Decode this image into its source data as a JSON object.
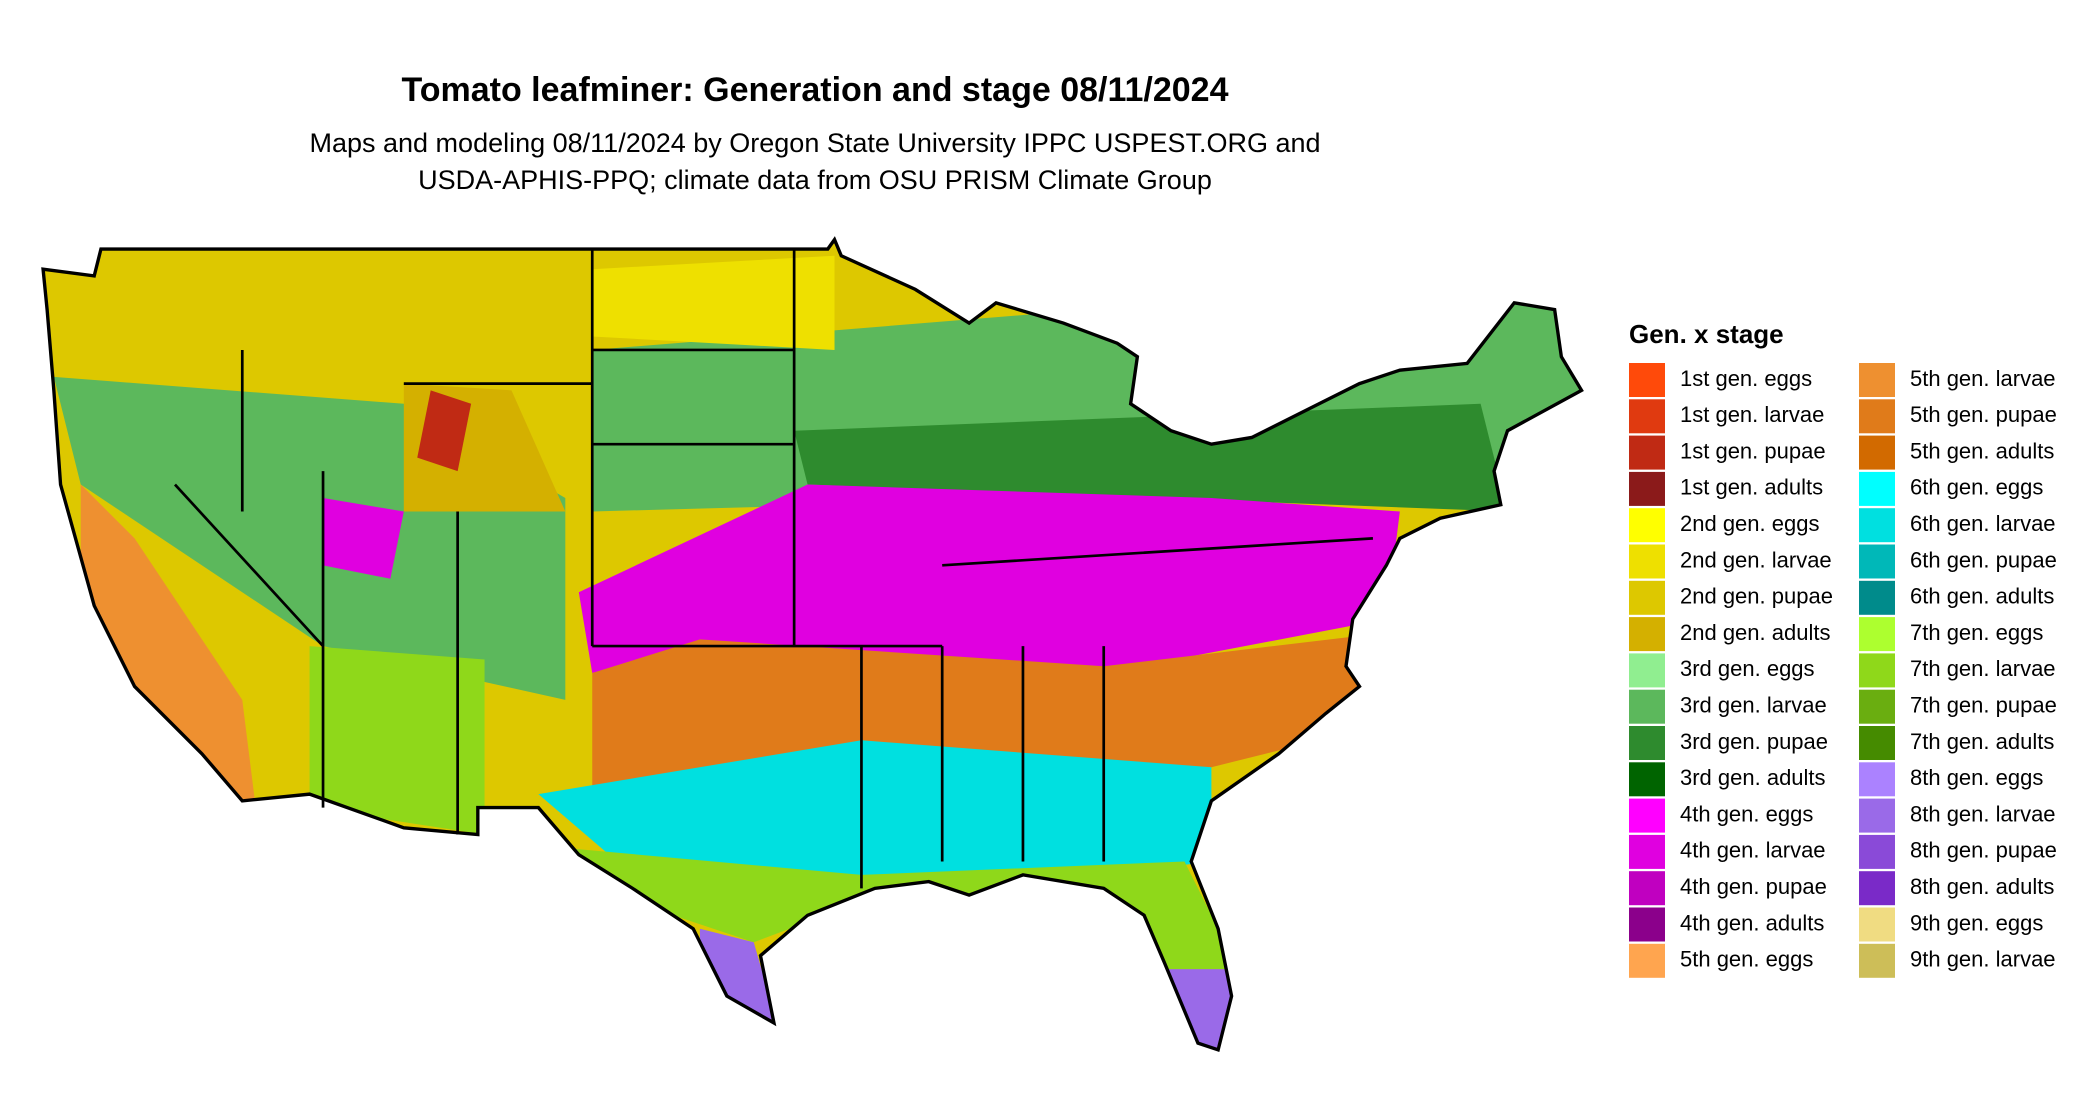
{
  "title": "Tomato leafminer: Generation and stage 08/11/2024",
  "subtitle": [
    "Maps and modeling 08/11/2024 by Oregon State University IPPC USPEST.ORG and",
    "USDA-APHIS-PPQ; climate data from OSU PRISM Climate Group"
  ],
  "legend": {
    "title": "Gen. x stage",
    "items": [
      {
        "label": "1st gen. eggs",
        "color": "#ff4a0a"
      },
      {
        "label": "1st gen. larvae",
        "color": "#e03a10"
      },
      {
        "label": "1st gen. pupae",
        "color": "#c02a14"
      },
      {
        "label": "1st gen. adults",
        "color": "#8b1a1a"
      },
      {
        "label": "2nd gen. eggs",
        "color": "#ffff00"
      },
      {
        "label": "2nd gen. larvae",
        "color": "#eee000"
      },
      {
        "label": "2nd gen. pupae",
        "color": "#ddc800"
      },
      {
        "label": "2nd gen. adults",
        "color": "#d4b000"
      },
      {
        "label": "3rd gen. eggs",
        "color": "#90ee90"
      },
      {
        "label": "3rd gen. larvae",
        "color": "#5cb85c"
      },
      {
        "label": "3rd gen. pupae",
        "color": "#2e8b2e"
      },
      {
        "label": "3rd gen. adults",
        "color": "#006400"
      },
      {
        "label": "4th gen. eggs",
        "color": "#ff00ff"
      },
      {
        "label": "4th gen. larvae",
        "color": "#e000e0"
      },
      {
        "label": "4th gen. pupae",
        "color": "#c000c0"
      },
      {
        "label": "4th gen. adults",
        "color": "#8b008b"
      },
      {
        "label": "5th gen. eggs",
        "color": "#ffa54f"
      },
      {
        "label": "5th gen. larvae",
        "color": "#ee9030"
      },
      {
        "label": "5th gen. pupae",
        "color": "#e07b1a"
      },
      {
        "label": "5th gen. adults",
        "color": "#d26a00"
      },
      {
        "label": "6th gen. eggs",
        "color": "#00ffff"
      },
      {
        "label": "6th gen. larvae",
        "color": "#00e0e0"
      },
      {
        "label": "6th gen. pupae",
        "color": "#00b8b8"
      },
      {
        "label": "6th gen. adults",
        "color": "#008b8b"
      },
      {
        "label": "7th gen. eggs",
        "color": "#adff2f"
      },
      {
        "label": "7th gen. larvae",
        "color": "#8fd81a"
      },
      {
        "label": "7th gen. pupae",
        "color": "#6aae10"
      },
      {
        "label": "7th gen. adults",
        "color": "#458b00"
      },
      {
        "label": "8th gen. eggs",
        "color": "#ab82ff"
      },
      {
        "label": "8th gen. larvae",
        "color": "#9a6ae8"
      },
      {
        "label": "8th gen. pupae",
        "color": "#8a4ad8"
      },
      {
        "label": "8th gen. adults",
        "color": "#7a2ac8"
      },
      {
        "label": "9th gen. eggs",
        "color": "#f0dc82"
      },
      {
        "label": "9th gen. larvae",
        "color": "#cdbe58"
      }
    ]
  }
}
